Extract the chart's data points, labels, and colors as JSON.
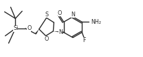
{
  "bg_color": "#ffffff",
  "line_color": "#2a2a2a",
  "line_width": 1.0,
  "font_size": 5.8,
  "figsize": [
    2.08,
    0.84
  ],
  "dpi": 100,
  "xlim": [
    0.0,
    10.4
  ],
  "ylim": [
    0.0,
    4.2
  ]
}
